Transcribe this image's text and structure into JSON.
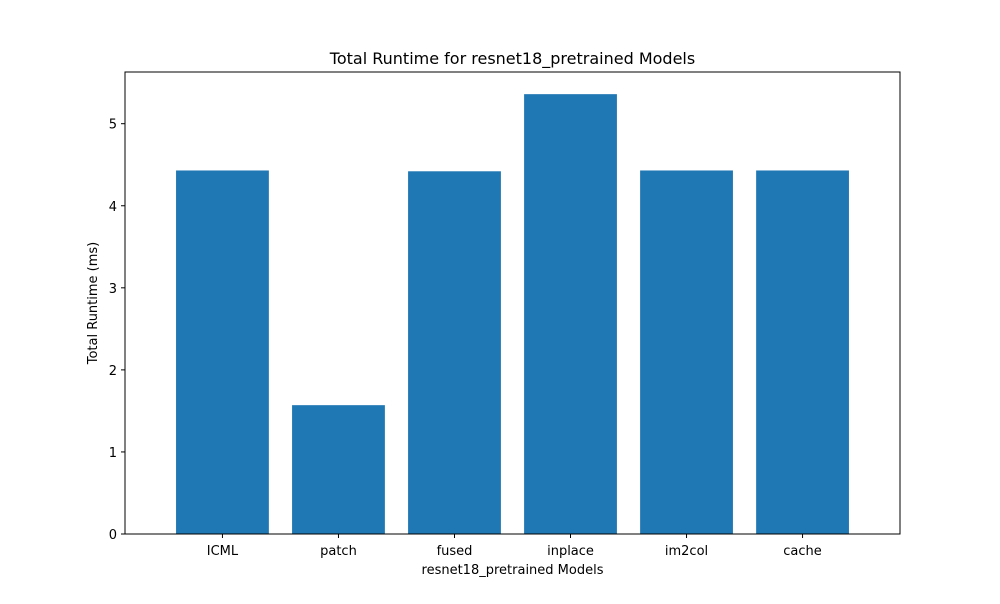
{
  "chart_data": {
    "type": "bar",
    "title": "Total Runtime for resnet18_pretrained Models",
    "xlabel": "resnet18_pretrained Models",
    "ylabel": "Total Runtime (ms)",
    "categories": [
      "ICML",
      "patch",
      "fused",
      "inplace",
      "im2col",
      "cache"
    ],
    "values": [
      4.43,
      1.57,
      4.42,
      5.36,
      4.43,
      4.43
    ],
    "ylim": [
      0,
      5.63
    ],
    "yticks": [
      0,
      1,
      2,
      3,
      4,
      5
    ],
    "bar_color": "#1f77b4",
    "grid": false,
    "legend": "none"
  }
}
